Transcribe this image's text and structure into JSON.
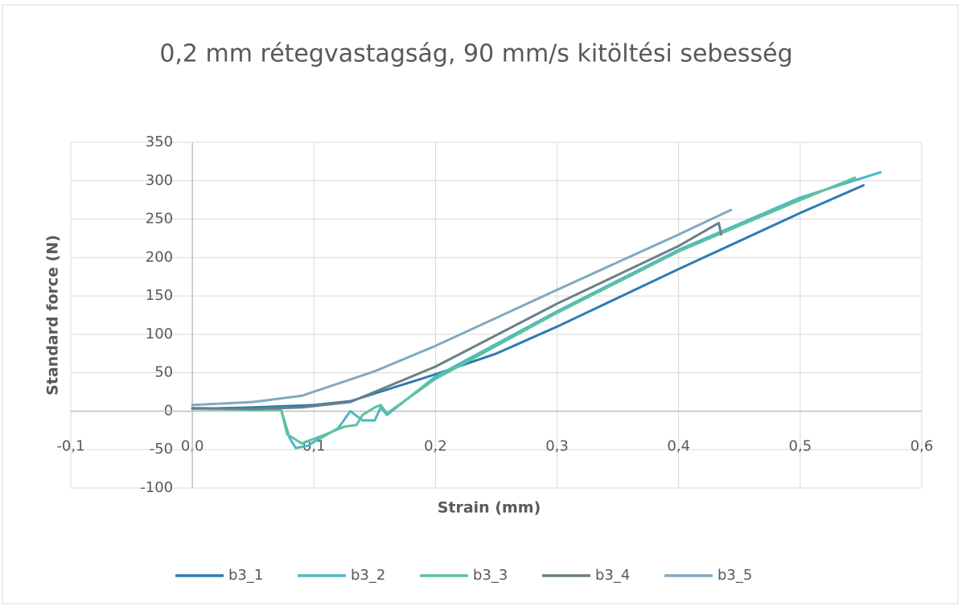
{
  "chart_data": {
    "type": "line",
    "title": "0,2 mm rétegvastagság, 90 mm/s kitöltési sebesség",
    "xlabel": "Strain (mm)",
    "ylabel": "Standard force (N)",
    "xlim": [
      -0.1,
      0.6
    ],
    "xticks": [
      {
        "value": -0.1,
        "label": "-0,1"
      },
      {
        "value": 0,
        "label": "0,0"
      },
      {
        "value": 0.1,
        "label": "0,1"
      },
      {
        "value": 0.2,
        "label": "0,2"
      },
      {
        "value": 0.3,
        "label": "0,3"
      },
      {
        "value": 0.4,
        "label": "0,4"
      },
      {
        "value": 0.5,
        "label": "0,5"
      },
      {
        "value": 0.6,
        "label": "0,6"
      }
    ],
    "ylim": [
      -100,
      350
    ],
    "yticks": [
      -100,
      -50,
      0,
      50,
      100,
      150,
      200,
      250,
      300,
      350
    ],
    "grid": true,
    "legend": "bottom",
    "series": [
      {
        "name": "b3_1",
        "color": "#2e7bb4",
        "x": [
          0,
          0.05,
          0.1,
          0.13,
          0.2,
          0.25,
          0.3,
          0.4,
          0.5,
          0.552
        ],
        "values": [
          3,
          5,
          8,
          13,
          48,
          75,
          110,
          185,
          258,
          294
        ]
      },
      {
        "name": "b3_2",
        "color": "#4cb9c5",
        "x": [
          0,
          0.05,
          0.073,
          0.08,
          0.085,
          0.095,
          0.1,
          0.12,
          0.13,
          0.14,
          0.15,
          0.155,
          0.16,
          0.2,
          0.3,
          0.4,
          0.5,
          0.566
        ],
        "values": [
          3,
          2,
          2,
          -35,
          -48,
          -45,
          -40,
          -22,
          0,
          -12,
          -12,
          5,
          -5,
          45,
          130,
          210,
          278,
          311
        ]
      },
      {
        "name": "b3_3",
        "color": "#5fc19c",
        "x": [
          0,
          0.073,
          0.078,
          0.09,
          0.11,
          0.125,
          0.135,
          0.14,
          0.15,
          0.155,
          0.16,
          0.2,
          0.3,
          0.4,
          0.5,
          0.545
        ],
        "values": [
          3,
          2,
          -30,
          -42,
          -30,
          -20,
          -18,
          -5,
          5,
          8,
          -3,
          42,
          128,
          208,
          275,
          304
        ]
      },
      {
        "name": "b3_4",
        "color": "#6b8087",
        "x": [
          0,
          0.05,
          0.09,
          0.13,
          0.2,
          0.3,
          0.4,
          0.433,
          0.435
        ],
        "values": [
          4,
          3,
          5,
          12,
          58,
          140,
          215,
          245,
          230
        ]
      },
      {
        "name": "b3_5",
        "color": "#80a9c2",
        "x": [
          0,
          0.05,
          0.09,
          0.15,
          0.2,
          0.3,
          0.4,
          0.443
        ],
        "values": [
          8,
          12,
          20,
          52,
          85,
          158,
          230,
          262
        ]
      }
    ]
  }
}
